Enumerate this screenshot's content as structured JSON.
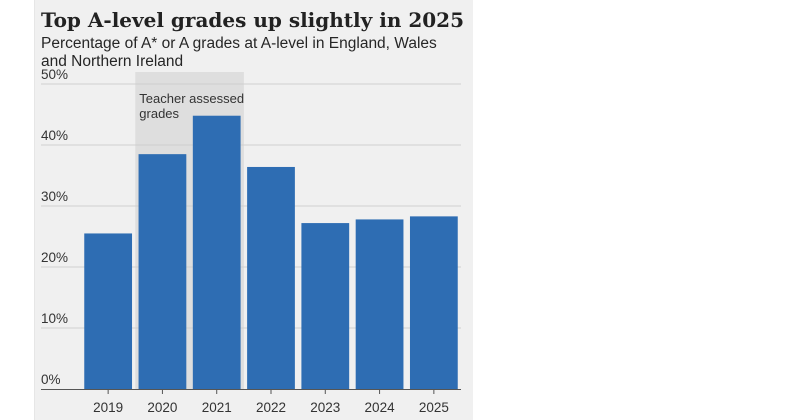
{
  "chart_data": {
    "type": "bar",
    "title": "Top A-level grades up slightly in 2025",
    "subtitle": "Percentage of A* or A grades at A-level in England, Wales and Northern Ireland",
    "categories": [
      "2019",
      "2020",
      "2021",
      "2022",
      "2023",
      "2024",
      "2025"
    ],
    "values": [
      25.5,
      38.5,
      44.8,
      36.4,
      27.2,
      27.8,
      28.3
    ],
    "ylim": [
      0,
      50
    ],
    "yticks": [
      0,
      10,
      20,
      30,
      40,
      50
    ],
    "ytick_labels": [
      "0%",
      "10%",
      "20%",
      "30%",
      "40%",
      "50%"
    ],
    "grid": "horizontal",
    "bar_color": "#2e6db3",
    "annotation": {
      "text_lines": [
        "Teacher assessed",
        "grades"
      ],
      "highlight_categories": [
        "2020",
        "2021"
      ],
      "highlight_color": "#dedede"
    }
  }
}
